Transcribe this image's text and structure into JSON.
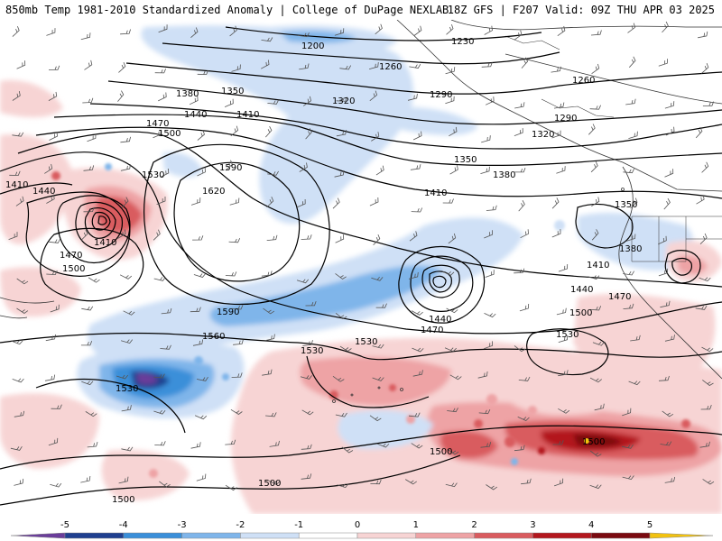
{
  "header": {
    "title_left": "850mb Temp 1981-2010 Standardized Anomaly | College of DuPage NEXLAB",
    "title_right": "18Z GFS | F207 Valid: 09Z THU APR 03 2025"
  },
  "colors": {
    "neg5": "#6a3d9a",
    "neg4": "#1f3f8f",
    "neg3": "#3a8fd9",
    "neg2": "#7fb5ea",
    "neg1": "#cfe0f6",
    "zero": "#ffffff",
    "pos1": "#f7d4d4",
    "pos2": "#eea3a5",
    "pos3": "#d95b5f",
    "pos4": "#b3171e",
    "pos5": "#7a0a10",
    "pos6": "#f2c20f"
  },
  "colorbar": {
    "ticks": [
      "-5",
      "-4",
      "-3",
      "-2",
      "-1",
      "0",
      "1",
      "2",
      "3",
      "4",
      "5"
    ],
    "values": [
      -5,
      -4,
      -3,
      -2,
      -1,
      0,
      1,
      2,
      3,
      4,
      5
    ]
  },
  "contour_labels": [
    {
      "id": "l1",
      "text": "1200"
    },
    {
      "id": "l2",
      "text": "1230"
    },
    {
      "id": "l3",
      "text": "1260"
    },
    {
      "id": "l4",
      "text": "1260"
    },
    {
      "id": "l5",
      "text": "1290"
    },
    {
      "id": "l6",
      "text": "1290"
    },
    {
      "id": "l7",
      "text": "1320"
    },
    {
      "id": "l8",
      "text": "1320"
    },
    {
      "id": "l9",
      "text": "1350"
    },
    {
      "id": "l10",
      "text": "1350"
    },
    {
      "id": "l11",
      "text": "1350"
    },
    {
      "id": "l12",
      "text": "1380"
    },
    {
      "id": "l13",
      "text": "1380"
    },
    {
      "id": "l14",
      "text": "1380"
    },
    {
      "id": "l15",
      "text": "1410"
    },
    {
      "id": "l16",
      "text": "1410"
    },
    {
      "id": "l17",
      "text": "1410"
    },
    {
      "id": "l18",
      "text": "1410"
    },
    {
      "id": "l19",
      "text": "1410"
    },
    {
      "id": "l20",
      "text": "1440"
    },
    {
      "id": "l21",
      "text": "1440"
    },
    {
      "id": "l22",
      "text": "1440"
    },
    {
      "id": "l23",
      "text": "1440"
    },
    {
      "id": "l24",
      "text": "1470"
    },
    {
      "id": "l25",
      "text": "1470"
    },
    {
      "id": "l26",
      "text": "1470"
    },
    {
      "id": "l27",
      "text": "1470"
    },
    {
      "id": "l28",
      "text": "1500"
    },
    {
      "id": "l29",
      "text": "1500"
    },
    {
      "id": "l30",
      "text": "1500"
    },
    {
      "id": "l31",
      "text": "1500"
    },
    {
      "id": "l32",
      "text": "1500"
    },
    {
      "id": "l33",
      "text": "1500"
    },
    {
      "id": "l34",
      "text": "1500"
    },
    {
      "id": "l35",
      "text": "1530"
    },
    {
      "id": "l36",
      "text": "1530"
    },
    {
      "id": "l37",
      "text": "1530"
    },
    {
      "id": "l38",
      "text": "1530"
    },
    {
      "id": "l39",
      "text": "1530"
    },
    {
      "id": "l40",
      "text": "1560"
    },
    {
      "id": "l41",
      "text": "1590"
    },
    {
      "id": "l42",
      "text": "1590"
    },
    {
      "id": "l43",
      "text": "1620"
    }
  ]
}
